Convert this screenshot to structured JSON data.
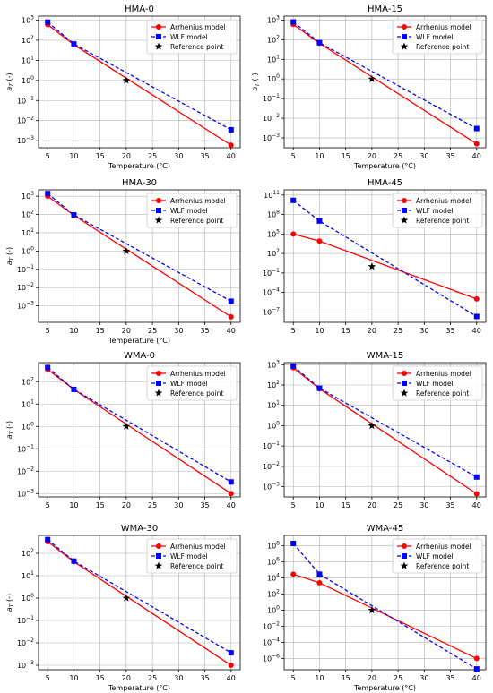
{
  "colors": {
    "arrhenius": "#ff0000",
    "wlf": "#0000ff",
    "reference": "#000000",
    "grid": "#b0b0b0"
  },
  "legend": {
    "arrhenius": "Arrhenius model",
    "wlf": "WLF model",
    "reference": "Reference point"
  },
  "chart_data": [
    {
      "type": "line",
      "title": "HMA-0",
      "xlabel": "Temperature (°C)",
      "ylabel": "a_T (-)",
      "scale": "log",
      "grid": true,
      "legend_position": "top-right",
      "x": [
        5,
        10,
        40
      ],
      "xticks": [
        5,
        10,
        15,
        20,
        25,
        30,
        35,
        40
      ],
      "yticks": [
        -3,
        -2,
        -1,
        0,
        1,
        2,
        3
      ],
      "ylim_log10": [
        -3.35,
        3.2
      ],
      "series": [
        {
          "name": "Arrhenius model",
          "values": [
            600,
            60,
            0.0006
          ]
        },
        {
          "name": "WLF model",
          "values": [
            800,
            65,
            0.0035
          ]
        }
      ],
      "reference_point": {
        "x": 20,
        "y": 1
      }
    },
    {
      "type": "line",
      "title": "HMA-15",
      "xlabel": "Temperature (°C)",
      "ylabel": "a_T (-)",
      "scale": "log",
      "grid": true,
      "legend_position": "top-right",
      "x": [
        5,
        10,
        40
      ],
      "xticks": [
        5,
        10,
        15,
        20,
        25,
        30,
        35,
        40
      ],
      "yticks": [
        -3,
        -2,
        -1,
        0,
        1,
        2,
        3
      ],
      "ylim_log10": [
        -3.5,
        3.2
      ],
      "series": [
        {
          "name": "Arrhenius model",
          "values": [
            600,
            65,
            0.0005
          ]
        },
        {
          "name": "WLF model",
          "values": [
            800,
            70,
            0.003
          ]
        }
      ],
      "reference_point": {
        "x": 20,
        "y": 1
      }
    },
    {
      "type": "line",
      "title": "HMA-30",
      "xlabel": "Temperature (°C)",
      "ylabel": "a_T (-)",
      "scale": "log",
      "grid": true,
      "legend_position": "top-right",
      "x": [
        5,
        10,
        40
      ],
      "xticks": [
        5,
        10,
        15,
        20,
        25,
        30,
        35,
        40
      ],
      "yticks": [
        -3,
        -2,
        -1,
        0,
        1,
        2,
        3
      ],
      "ylim_log10": [
        -3.9,
        3.35
      ],
      "series": [
        {
          "name": "Arrhenius model",
          "values": [
            1000,
            90,
            0.00025
          ]
        },
        {
          "name": "WLF model",
          "values": [
            1400,
            95,
            0.0018
          ]
        }
      ],
      "reference_point": {
        "x": 20,
        "y": 1
      }
    },
    {
      "type": "line",
      "title": "HMA-45",
      "xlabel": "",
      "ylabel": "",
      "scale": "log",
      "grid": true,
      "legend_position": "top-right",
      "x": [
        5,
        10,
        40
      ],
      "xticks": [
        5,
        10,
        15,
        20,
        25,
        30,
        35,
        40
      ],
      "yticks": [
        -7,
        -4,
        -1,
        2,
        5,
        8,
        11
      ],
      "ylim_log10": [
        -8.6,
        11.8
      ],
      "series": [
        {
          "name": "Arrhenius model",
          "values": [
            100000,
            8000,
            1e-05
          ]
        },
        {
          "name": "WLF model",
          "values": [
            15000000000.0,
            10000000.0,
            2e-08
          ]
        }
      ],
      "reference_point": {
        "x": 20,
        "y": 1
      }
    },
    {
      "type": "line",
      "title": "WMA-0",
      "xlabel": "",
      "ylabel": "a_T (-)",
      "scale": "log",
      "grid": true,
      "legend_position": "top-right",
      "x": [
        5,
        10,
        40
      ],
      "xticks": [
        5,
        10,
        15,
        20,
        25,
        30,
        35,
        40
      ],
      "yticks": [
        -3,
        -2,
        -1,
        0,
        1,
        2
      ],
      "ylim_log10": [
        -3.15,
        2.85
      ],
      "series": [
        {
          "name": "Arrhenius model",
          "values": [
            350,
            45,
            0.001
          ]
        },
        {
          "name": "WLF model",
          "values": [
            430,
            45,
            0.0033
          ]
        }
      ],
      "reference_point": {
        "x": 20,
        "y": 1
      }
    },
    {
      "type": "line",
      "title": "WMA-15",
      "xlabel": "",
      "ylabel": "",
      "scale": "log",
      "grid": true,
      "legend_position": "top-right",
      "x": [
        5,
        10,
        40
      ],
      "xticks": [
        5,
        10,
        15,
        20,
        25,
        30,
        35,
        40
      ],
      "yticks": [
        -3,
        -2,
        -1,
        0,
        1,
        2,
        3
      ],
      "ylim_log10": [
        -3.5,
        3.1
      ],
      "series": [
        {
          "name": "Arrhenius model",
          "values": [
            700,
            65,
            0.00045
          ]
        },
        {
          "name": "WLF model",
          "values": [
            850,
            70,
            0.003
          ]
        }
      ],
      "reference_point": {
        "x": 20,
        "y": 1
      }
    },
    {
      "type": "line",
      "title": "WMA-30",
      "xlabel": "Temperature (°C)",
      "ylabel": "a_T (-)",
      "scale": "log",
      "grid": true,
      "legend_position": "top-right",
      "x": [
        5,
        10,
        40
      ],
      "xticks": [
        5,
        10,
        15,
        20,
        25,
        30,
        35,
        40
      ],
      "yticks": [
        -3,
        -2,
        -1,
        0,
        1,
        2
      ],
      "ylim_log10": [
        -3.2,
        2.8
      ],
      "series": [
        {
          "name": "Arrhenius model",
          "values": [
            330,
            42,
            0.001
          ]
        },
        {
          "name": "WLF model",
          "values": [
            410,
            45,
            0.0036
          ]
        }
      ],
      "reference_point": {
        "x": 20,
        "y": 1
      }
    },
    {
      "type": "line",
      "title": "WMA-45",
      "xlabel": "Temperature (°C)",
      "ylabel": "",
      "scale": "log",
      "grid": true,
      "legend_position": "top-right",
      "x": [
        5,
        10,
        40
      ],
      "xticks": [
        5,
        10,
        15,
        20,
        25,
        30,
        35,
        40
      ],
      "yticks": [
        -6,
        -4,
        -2,
        0,
        2,
        4,
        6,
        8
      ],
      "ylim_log10": [
        -7.4,
        9.3
      ],
      "series": [
        {
          "name": "Arrhenius model",
          "values": [
            30000,
            2500,
            1e-06
          ]
        },
        {
          "name": "WLF model",
          "values": [
            200000000.0,
            30000,
            5e-08
          ]
        }
      ],
      "reference_point": {
        "x": 20,
        "y": 1
      }
    }
  ]
}
